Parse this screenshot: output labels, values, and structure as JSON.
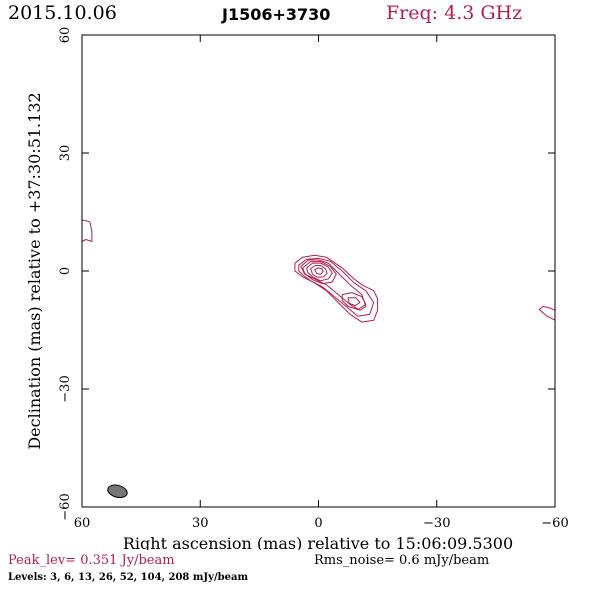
{
  "header": {
    "date": "2015.10.06",
    "source": "J1506+3730",
    "frequency": "Freq: 4.3 GHz"
  },
  "footer": {
    "peak": "Peak_lev=  0.351 Jy/beam",
    "rms": "Rms_noise=  0.6 mJy/beam",
    "levels": "Levels:   3,   6,  13,  26,  52,  104,  208  mJy/beam"
  },
  "colors": {
    "contour": "#b0204a",
    "beam_fill": "#777777",
    "axes": "#000000"
  },
  "chart_data": {
    "type": "contour",
    "xlabel": "Right ascension (mas) relative to 15:06:09.5300",
    "ylabel": "Declination (mas) relative to +37:30:51.132",
    "xlim": [
      60,
      -60
    ],
    "ylim": [
      -60,
      60
    ],
    "xticks": [
      60,
      30,
      0,
      -30,
      -60
    ],
    "yticks": [
      60,
      30,
      0,
      -30,
      -60
    ],
    "xtick_labels": [
      "60",
      "30",
      "0",
      "−30",
      "−60"
    ],
    "ytick_labels": [
      "60",
      "30",
      "0",
      "−30",
      "−60"
    ],
    "grid": false,
    "peak_jy_per_beam": 0.351,
    "rms_mjy_per_beam": 0.6,
    "levels_mjy_per_beam": [
      3,
      6,
      13,
      26,
      52,
      104,
      208
    ],
    "beam": {
      "x": 51,
      "y": -56,
      "major_mas": 5,
      "minor_mas": 3,
      "pa_deg": 75
    },
    "contours": [
      {
        "name": "core-jet-outer",
        "points": [
          [
            6,
            2
          ],
          [
            4,
            3.5
          ],
          [
            1,
            4
          ],
          [
            -2,
            3.5
          ],
          [
            -6,
            0.8
          ],
          [
            -9,
            -2
          ],
          [
            -11,
            -3.5
          ],
          [
            -14,
            -5
          ],
          [
            -15,
            -7
          ],
          [
            -15,
            -10
          ],
          [
            -14,
            -12.5
          ],
          [
            -11,
            -13
          ],
          [
            -8,
            -11
          ],
          [
            -5,
            -8
          ],
          [
            -2,
            -5
          ],
          [
            1,
            -3
          ],
          [
            4,
            -1.5
          ],
          [
            6,
            0
          ]
        ]
      },
      {
        "name": "core-jet-level-2",
        "points": [
          [
            5,
            1.5
          ],
          [
            3,
            3
          ],
          [
            0,
            3.2
          ],
          [
            -3,
            2.5
          ],
          [
            -6,
            0
          ],
          [
            -9,
            -3
          ],
          [
            -12,
            -5
          ],
          [
            -14,
            -8
          ],
          [
            -13,
            -11
          ],
          [
            -10,
            -11.5
          ],
          [
            -7,
            -9
          ],
          [
            -4,
            -6.5
          ],
          [
            -1,
            -4
          ],
          [
            2,
            -2.5
          ],
          [
            4,
            -1
          ],
          [
            5,
            0
          ]
        ]
      },
      {
        "name": "core-jet-level-3",
        "points": [
          [
            4.5,
            1.2
          ],
          [
            2.5,
            2.8
          ],
          [
            0,
            2.8
          ],
          [
            -2.5,
            2
          ],
          [
            -5,
            -0.5
          ],
          [
            -8,
            -3.5
          ],
          [
            -11,
            -6
          ],
          [
            -12,
            -9
          ],
          [
            -10.5,
            -10
          ],
          [
            -8,
            -8.5
          ],
          [
            -5,
            -6
          ],
          [
            -2,
            -3.5
          ],
          [
            1,
            -2
          ],
          [
            3.5,
            -0.8
          ]
        ]
      },
      {
        "name": "core-level-4",
        "points": [
          [
            4,
            0.8
          ],
          [
            2,
            2.4
          ],
          [
            -0.5,
            2.4
          ],
          [
            -3,
            1.2
          ],
          [
            -4.5,
            -0.8
          ],
          [
            -3.5,
            -2.8
          ],
          [
            -1,
            -3.2
          ],
          [
            1.5,
            -2.2
          ],
          [
            3.5,
            -0.6
          ]
        ]
      },
      {
        "name": "core-level-5",
        "points": [
          [
            3,
            0.8
          ],
          [
            1.5,
            2
          ],
          [
            -0.5,
            2
          ],
          [
            -2.5,
            1
          ],
          [
            -3.5,
            -0.5
          ],
          [
            -2.5,
            -2
          ],
          [
            -0.5,
            -2.5
          ],
          [
            1.5,
            -1.5
          ],
          [
            2.8,
            -0.3
          ]
        ]
      },
      {
        "name": "core-level-6",
        "points": [
          [
            2,
            0.6
          ],
          [
            0.8,
            1.4
          ],
          [
            -0.6,
            1.4
          ],
          [
            -1.8,
            0.5
          ],
          [
            -2.2,
            -0.6
          ],
          [
            -1.2,
            -1.5
          ],
          [
            0.3,
            -1.6
          ],
          [
            1.5,
            -0.9
          ]
        ]
      },
      {
        "name": "core-level-7",
        "points": [
          [
            1,
            0.3
          ],
          [
            0.2,
            0.8
          ],
          [
            -0.8,
            0.6
          ],
          [
            -1.2,
            -0.1
          ],
          [
            -0.6,
            -0.8
          ],
          [
            0.4,
            -0.7
          ]
        ]
      },
      {
        "name": "jet-knot-outer",
        "points": [
          [
            -6,
            -6
          ],
          [
            -8.5,
            -5.5
          ],
          [
            -11,
            -6.5
          ],
          [
            -12,
            -8.5
          ],
          [
            -10,
            -9.8
          ],
          [
            -7.5,
            -9
          ],
          [
            -6,
            -7.5
          ]
        ]
      },
      {
        "name": "jet-knot-inner",
        "points": [
          [
            -7.5,
            -6.8
          ],
          [
            -9.5,
            -6.8
          ],
          [
            -10.5,
            -8
          ],
          [
            -9.3,
            -8.8
          ],
          [
            -7.8,
            -8.2
          ]
        ]
      },
      {
        "name": "left-edge-contour",
        "points": [
          [
            60,
            13
          ],
          [
            58,
            12.5
          ],
          [
            57.5,
            10
          ],
          [
            57.5,
            7.5
          ],
          [
            59,
            8
          ],
          [
            60,
            7.5
          ]
        ]
      },
      {
        "name": "right-edge-contour",
        "points": [
          [
            -60,
            -12.5
          ],
          [
            -58,
            -11.5
          ],
          [
            -56,
            -9.8
          ],
          [
            -57,
            -9
          ],
          [
            -59,
            -9.5
          ],
          [
            -60,
            -10
          ]
        ]
      }
    ]
  }
}
